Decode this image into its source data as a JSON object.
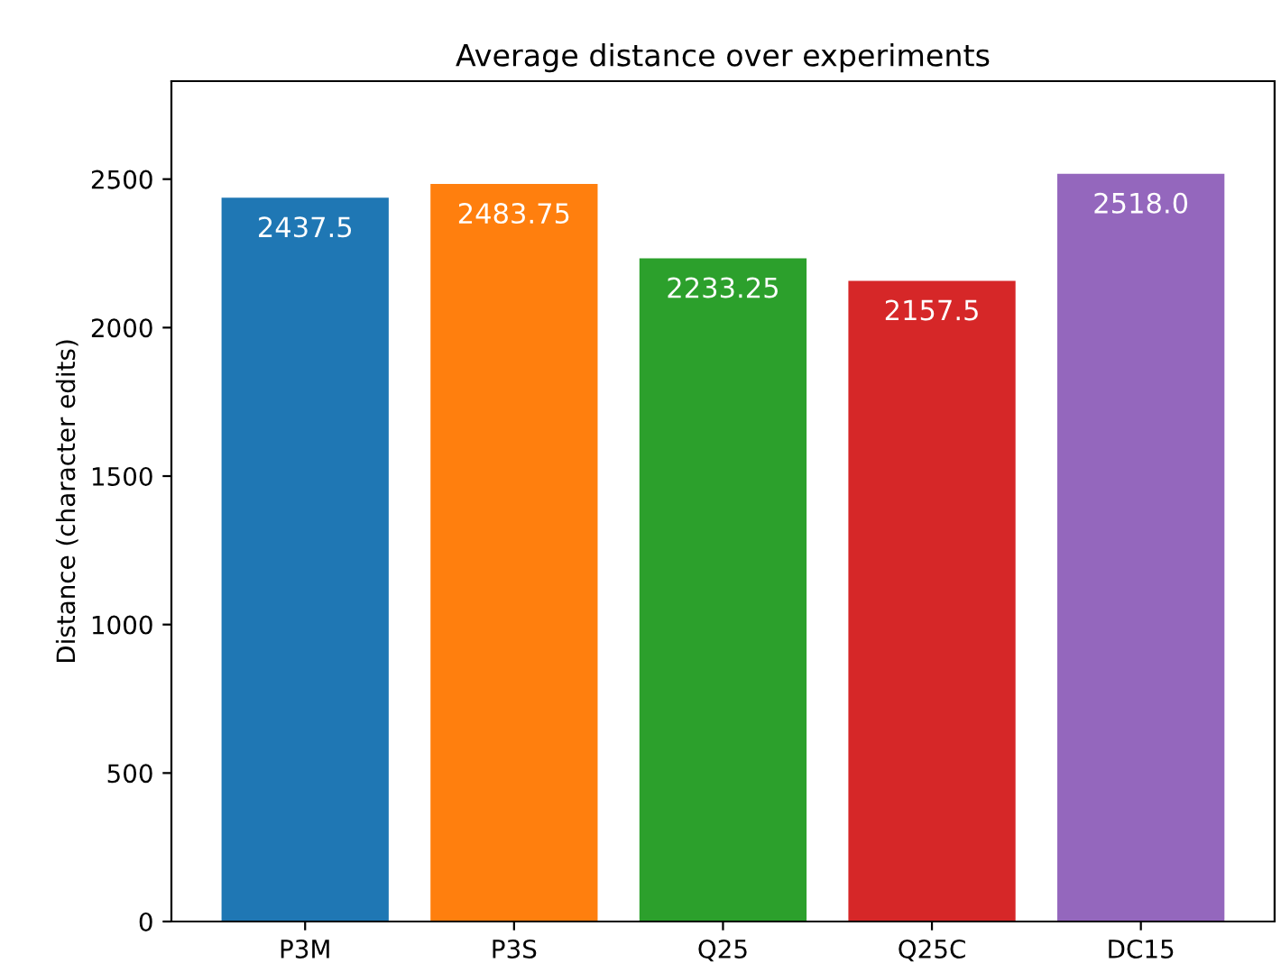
{
  "chart_data": {
    "type": "bar",
    "title": "Average distance over experiments",
    "ylabel": "Distance (character edits)",
    "categories": [
      "P3M",
      "P3S",
      "Q25",
      "Q25C",
      "DC15"
    ],
    "values": [
      2437.5,
      2483.75,
      2233.25,
      2157.5,
      2518.0
    ],
    "colors": [
      "#1f77b4",
      "#ff7f0e",
      "#2ca02c",
      "#d62728",
      "#9467bd"
    ],
    "value_labels": [
      "2437.5",
      "2483.75",
      "2233.25",
      "2157.5",
      "2518.0"
    ],
    "ylim": [
      0,
      2830
    ],
    "yticks": [
      0,
      500,
      1000,
      1500,
      2000,
      2500
    ]
  }
}
